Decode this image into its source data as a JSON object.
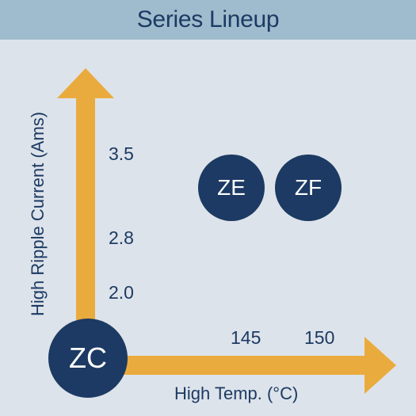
{
  "header": {
    "title": "Series Lineup"
  },
  "axes": {
    "y_label": "High Ripple Current (Ams)",
    "x_label": "High Temp. (°C)",
    "y_ticks": [
      "3.5",
      "2.8",
      "2.0"
    ],
    "x_ticks": [
      "145",
      "150"
    ]
  },
  "series_badges": {
    "origin": "ZC",
    "mid": "ZE",
    "high": "ZF"
  },
  "colors": {
    "header_bg": "#9ebccd",
    "background": "#dde3ea",
    "navy": "#1c3a63",
    "arrow": "#eaab3e"
  }
}
